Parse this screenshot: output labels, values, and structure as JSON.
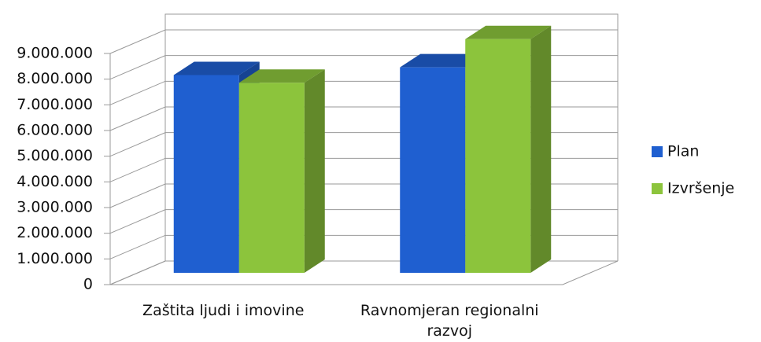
{
  "chart_data": {
    "type": "bar3d",
    "categories": [
      "Zaštita ljudi i imovine",
      "Ravnomjeran regionalni razvoj"
    ],
    "series": [
      {
        "name": "Plan",
        "color": "#1f5fd0",
        "values": [
          7700000,
          8000000
        ]
      },
      {
        "name": "Izvršenje",
        "color": "#8cc43c",
        "values": [
          7400000,
          9100000
        ]
      }
    ],
    "ylim": [
      0,
      9000000
    ],
    "yticks": [
      0,
      {
        "value": 1000000,
        "label": "1.000.000"
      },
      {
        "value": 2000000,
        "label": "2.000.000"
      },
      {
        "value": 3000000,
        "label": "3.000.000"
      },
      {
        "value": 4000000,
        "label": "4.000.000"
      },
      {
        "value": 5000000,
        "label": "5.000.000"
      },
      {
        "value": 6000000,
        "label": "6.000.000"
      },
      {
        "value": 7000000,
        "label": "7.000.000"
      },
      {
        "value": 8000000,
        "label": "8.000.000"
      },
      {
        "value": 9000000,
        "label": "9.000.000"
      }
    ],
    "grid": true,
    "legend": "right"
  }
}
